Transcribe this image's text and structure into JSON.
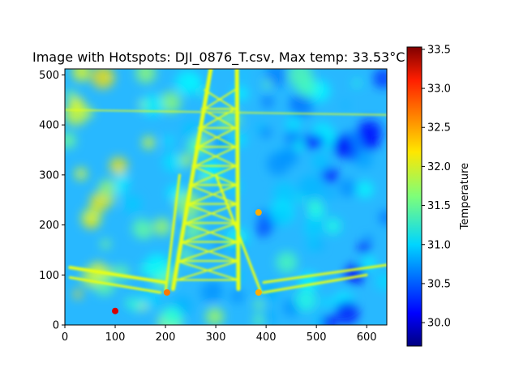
{
  "chart_data": {
    "type": "heatmap",
    "title": "Image with Hotspots: DJI_0876_T.csv, Max temp: 33.53°C",
    "xlabel": "",
    "ylabel": "",
    "xlim": [
      0,
      640
    ],
    "ylim": [
      0,
      512
    ],
    "x_ticks": [
      0,
      100,
      200,
      300,
      400,
      500,
      600
    ],
    "y_ticks": [
      0,
      100,
      200,
      300,
      400,
      500
    ],
    "colormap": "jet",
    "colorbar": {
      "label": "Temperature",
      "vmin": 29.7,
      "vmax": 33.53,
      "ticks": [
        30.0,
        30.5,
        31.0,
        31.5,
        32.0,
        32.5,
        33.0,
        33.5
      ]
    },
    "features": {
      "tower_leg_base_x": [
        200,
        390
      ],
      "tower_top_x": [
        290,
        350
      ],
      "hotspots": [
        {
          "x": 100,
          "y": 28,
          "temp": 33.2
        },
        {
          "x": 203,
          "y": 65,
          "temp": 32.6
        },
        {
          "x": 385,
          "y": 225,
          "temp": 32.4
        },
        {
          "x": 385,
          "y": 65,
          "temp": 32.4
        }
      ]
    },
    "grid": false,
    "legend": "none"
  }
}
